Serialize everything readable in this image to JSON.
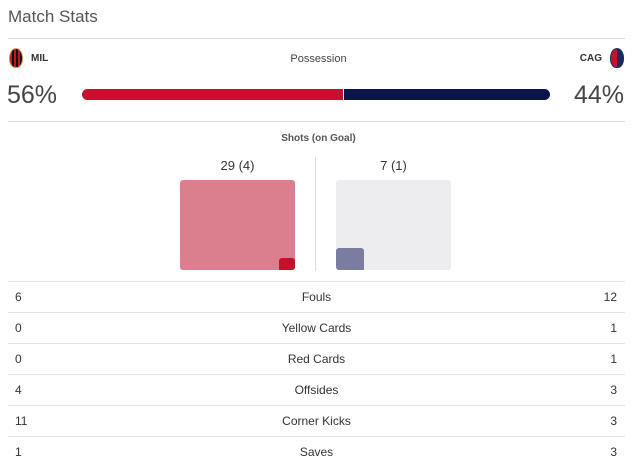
{
  "title": "Match Stats",
  "teams": {
    "home": {
      "abbr": "MIL",
      "crest_icon": "ac-milan-crest-icon",
      "color": "#c8102e"
    },
    "away": {
      "abbr": "CAG",
      "crest_icon": "cagliari-crest-icon",
      "color": "#0b1547"
    }
  },
  "possession": {
    "label": "Possession",
    "home_pct": "56%",
    "away_pct": "44%",
    "home_fraction": 0.56
  },
  "shots": {
    "label": "Shots (on Goal)",
    "home": "29 (4)",
    "away": "7 (1)",
    "home_total": 29,
    "home_on_goal": 4,
    "away_total": 7,
    "away_on_goal": 1
  },
  "stats": [
    {
      "label": "Fouls",
      "home": "6",
      "away": "12"
    },
    {
      "label": "Yellow Cards",
      "home": "0",
      "away": "1"
    },
    {
      "label": "Red Cards",
      "home": "0",
      "away": "1"
    },
    {
      "label": "Offsides",
      "home": "4",
      "away": "3"
    },
    {
      "label": "Corner Kicks",
      "home": "11",
      "away": "3"
    },
    {
      "label": "Saves",
      "home": "1",
      "away": "3"
    }
  ]
}
